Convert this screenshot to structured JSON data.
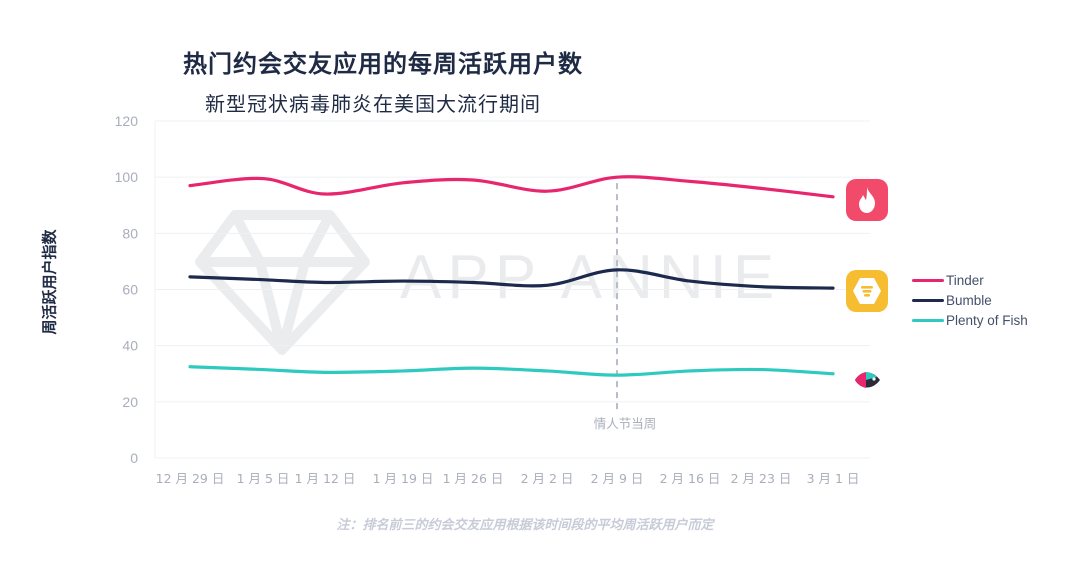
{
  "title": "热门约会交友应用的每周活跃用户数",
  "subtitle": "新型冠状病毒肺炎在美国大流行期间",
  "note": "注：排名前三的约会交友应用根据该时间段的平均周活跃用户而定",
  "watermark": "APP ANNIE",
  "annotation": {
    "label": "情人节当周",
    "x_index": 6
  },
  "colors": {
    "tinder": "#e8266d",
    "bumble": "#1d2a4d",
    "pof": "#2ec9bf",
    "grid": "#eef0f4",
    "axis_text": "#a9aebb"
  },
  "icons": {
    "tinder": "tinder-flame-icon",
    "bumble": "bumble-logo-icon",
    "pof": "plenty-of-fish-logo-icon"
  },
  "chart_data": {
    "type": "line",
    "title": "热门约会交友应用的每周活跃用户数",
    "subtitle": "新型冠状病毒肺炎在美国大流行期间",
    "ylabel": "周活跃用户指数",
    "xlabel": "",
    "ylim": [
      0,
      120
    ],
    "yticks": [
      0,
      20,
      40,
      60,
      80,
      100,
      120
    ],
    "x_tick_labels": [
      "12 月 29 日",
      "1 月 5 日",
      "1 月 12 日",
      "1 月 19 日",
      "1 月 26 日",
      "2 月 2 日",
      "2 月 9 日",
      "2 月 16 日",
      "2 月 23 日",
      "3 月 1 日"
    ],
    "x": [
      "12 月 29 日",
      "1 月 5 日",
      "1 月 12 日",
      "1 月 19 日",
      "1 月 26 日",
      "2 月 2 日",
      "2 月 9 日",
      "2 月 16 日",
      "2 月 23 日",
      "3 月 1 日"
    ],
    "series": [
      {
        "name": "Tinder",
        "values": [
          97,
          99.5,
          94,
          98,
          99,
          95,
          100,
          98.5,
          96,
          93
        ]
      },
      {
        "name": "Bumble",
        "values": [
          64.5,
          63.5,
          62.5,
          63,
          62.5,
          61.5,
          67,
          63,
          61,
          60.5
        ]
      },
      {
        "name": "Plenty of Fish",
        "values": [
          32.5,
          31.5,
          30.5,
          31,
          32,
          31,
          29.5,
          31,
          31.5,
          30
        ]
      }
    ],
    "grid": true,
    "legend_position": "right"
  }
}
